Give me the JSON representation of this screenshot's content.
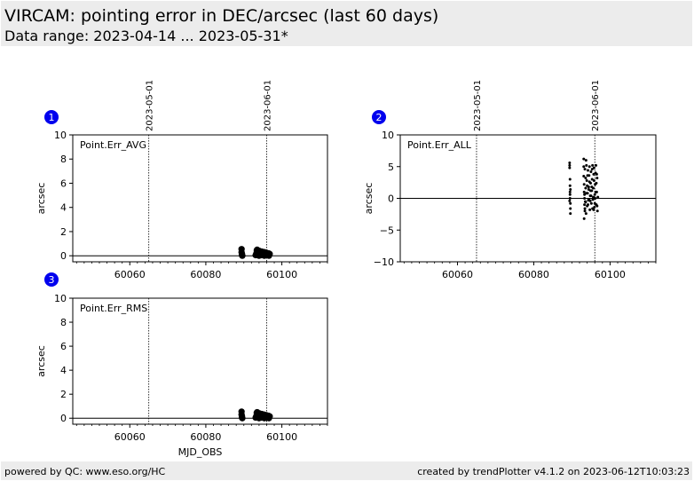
{
  "header": {
    "title": "VIRCAM: pointing error in DEC/arcsec (last 60 days)",
    "subtitle": "Data range: 2023-04-14 ... 2023-05-31*"
  },
  "footer": {
    "left": "powered by QC: www.eso.org/HC",
    "right": "created by trendPlotter v4.1.2 on 2023-06-12T10:03:23"
  },
  "colors": {
    "badge": "#0000ee",
    "points": "#000000",
    "background": "#ffffff",
    "band": "#ececec"
  },
  "chart_data": [
    {
      "id": "1",
      "type": "scatter",
      "badge": "1",
      "label": "Point.Err_AVG",
      "ylabel": "arcsec",
      "xlabel": "",
      "xlim": [
        60045,
        60112
      ],
      "ylim": [
        -0.5,
        10
      ],
      "yticks": [
        0,
        2,
        4,
        6,
        8,
        10
      ],
      "ytick_labels": [
        "0",
        "2",
        "4",
        "6",
        "8",
        "10"
      ],
      "xticks": [
        60060,
        60080,
        60100
      ],
      "xtick_labels": [
        "60060",
        "60080",
        "60100"
      ],
      "show_xtick_labels": true,
      "date_markers": [
        {
          "x": 60065,
          "label": "2023-05-01"
        },
        {
          "x": 60096,
          "label": "2023-06-01"
        }
      ],
      "hline": 0,
      "marker": "dot-large",
      "x": [
        60089.4,
        60089.4,
        60089.5,
        60089.5,
        60089.6,
        60093.1,
        60093.3,
        60093.4,
        60093.6,
        60093.8,
        60094.0,
        60094.2,
        60094.4,
        60094.6,
        60094.8,
        60095.0,
        60095.2,
        60095.4,
        60095.6,
        60095.8,
        60096.0,
        60096.2,
        60096.4,
        60096.6,
        60096.8,
        60093.5,
        60094.1,
        60094.7,
        60095.3,
        60095.9,
        60096.5
      ],
      "y": [
        0.55,
        0.3,
        0.15,
        0.05,
        0.0,
        0.05,
        0.2,
        0.45,
        0.1,
        0.3,
        0.0,
        0.25,
        0.35,
        0.05,
        0.2,
        0.1,
        0.3,
        0.0,
        0.15,
        0.25,
        0.05,
        0.2,
        0.1,
        0.0,
        0.15,
        0.5,
        0.4,
        0.35,
        0.3,
        0.25,
        0.2
      ]
    },
    {
      "id": "2",
      "type": "scatter",
      "badge": "2",
      "label": "Point.Err_ALL",
      "ylabel": "arcsec",
      "xlabel": "",
      "xlim": [
        60045,
        60112
      ],
      "ylim": [
        -10,
        10
      ],
      "yticks": [
        -10,
        -5,
        0,
        5,
        10
      ],
      "ytick_labels": [
        "−10",
        "−5",
        "0",
        "5",
        "10"
      ],
      "xticks": [
        60060,
        60080,
        60100
      ],
      "xtick_labels": [
        "60060",
        "60080",
        "60100"
      ],
      "show_xtick_labels": true,
      "date_markers": [
        {
          "x": 60065,
          "label": "2023-05-01"
        },
        {
          "x": 60096,
          "label": "2023-06-01"
        }
      ],
      "hline": 0,
      "marker": "dot-small",
      "x": [
        60089.4,
        60089.4,
        60089.4,
        60089.5,
        60089.5,
        60089.5,
        60089.5,
        60089.6,
        60089.6,
        60089.6,
        60089.4,
        60089.5,
        60089.6,
        60093.1,
        60093.1,
        60093.1,
        60093.2,
        60093.2,
        60093.3,
        60093.3,
        60093.4,
        60093.4,
        60093.5,
        60093.6,
        60093.6,
        60093.7,
        60093.8,
        60093.9,
        60094.0,
        60094.1,
        60094.2,
        60094.3,
        60094.4,
        60094.5,
        60094.6,
        60094.7,
        60094.8,
        60094.9,
        60095.0,
        60095.1,
        60095.2,
        60095.3,
        60095.4,
        60095.5,
        60095.6,
        60095.7,
        60095.8,
        60095.9,
        60096.0,
        60096.1,
        60096.2,
        60096.3,
        60096.4,
        60096.5,
        60096.6,
        60096.7,
        60096.8,
        60093.2,
        60093.4,
        60093.6,
        60093.8,
        60094.0,
        60094.2,
        60094.4,
        60094.6,
        60094.8,
        60095.0,
        60095.2,
        60095.4,
        60095.6,
        60095.8,
        60096.0,
        60096.2,
        60096.4,
        60096.6,
        60093.3,
        60093.7,
        60094.1,
        60094.5,
        60094.9,
        60095.3,
        60095.7,
        60096.1,
        60096.5
      ],
      "y": [
        5.6,
        5.2,
        4.8,
        3.0,
        2.0,
        1.0,
        0.0,
        -0.8,
        -1.6,
        -2.4,
        -0.4,
        0.6,
        1.4,
        6.2,
        5.0,
        3.5,
        2.2,
        1.0,
        0.0,
        -1.0,
        -2.0,
        4.6,
        -0.5,
        3.2,
        1.6,
        6.0,
        5.2,
        2.8,
        -1.2,
        0.8,
        4.4,
        -0.3,
        1.8,
        3.6,
        5.0,
        -1.8,
        0.4,
        2.4,
        4.2,
        -0.8,
        1.2,
        3.0,
        5.2,
        -0.2,
        1.6,
        3.8,
        4.8,
        -1.4,
        0.6,
        2.2,
        4.0,
        5.2,
        -1.0,
        1.0,
        3.2,
        -2.0,
        0.2,
        -3.2,
        -1.6,
        -0.6,
        0.8,
        2.0,
        -1.0,
        1.4,
        2.6,
        -0.4,
        0.4,
        1.8,
        -1.6,
        0.2,
        2.8,
        -0.8,
        1.0,
        2.4,
        -1.2,
        0.6,
        -2.4,
        3.6,
        -0.2,
        1.2,
        4.6,
        -1.8,
        0.0,
        3.8
      ]
    },
    {
      "id": "3",
      "type": "scatter",
      "badge": "3",
      "label": "Point.Err_RMS",
      "ylabel": "arcsec",
      "xlabel": "MJD_OBS",
      "xlim": [
        60045,
        60112
      ],
      "ylim": [
        -0.5,
        10
      ],
      "yticks": [
        0,
        2,
        4,
        6,
        8,
        10
      ],
      "ytick_labels": [
        "0",
        "2",
        "4",
        "6",
        "8",
        "10"
      ],
      "xticks": [
        60060,
        60080,
        60100
      ],
      "xtick_labels": [
        "60060",
        "60080",
        "60100"
      ],
      "show_xtick_labels": true,
      "date_markers": [
        {
          "x": 60065,
          "label": ""
        },
        {
          "x": 60096,
          "label": ""
        }
      ],
      "hline": 0,
      "marker": "dot-large",
      "x": [
        60089.4,
        60089.4,
        60089.5,
        60089.5,
        60089.6,
        60093.1,
        60093.3,
        60093.4,
        60093.6,
        60093.8,
        60094.0,
        60094.2,
        60094.4,
        60094.6,
        60094.8,
        60095.0,
        60095.2,
        60095.4,
        60095.6,
        60095.8,
        60096.0,
        60096.2,
        60096.4,
        60096.6,
        60096.8,
        60093.5,
        60094.1,
        60094.7,
        60095.3,
        60095.9,
        60096.5
      ],
      "y": [
        0.55,
        0.3,
        0.15,
        0.05,
        0.0,
        0.05,
        0.2,
        0.45,
        0.1,
        0.3,
        0.0,
        0.25,
        0.35,
        0.05,
        0.2,
        0.1,
        0.3,
        0.0,
        0.15,
        0.25,
        0.05,
        0.2,
        0.1,
        0.0,
        0.15,
        0.5,
        0.4,
        0.35,
        0.3,
        0.25,
        0.2
      ]
    }
  ]
}
